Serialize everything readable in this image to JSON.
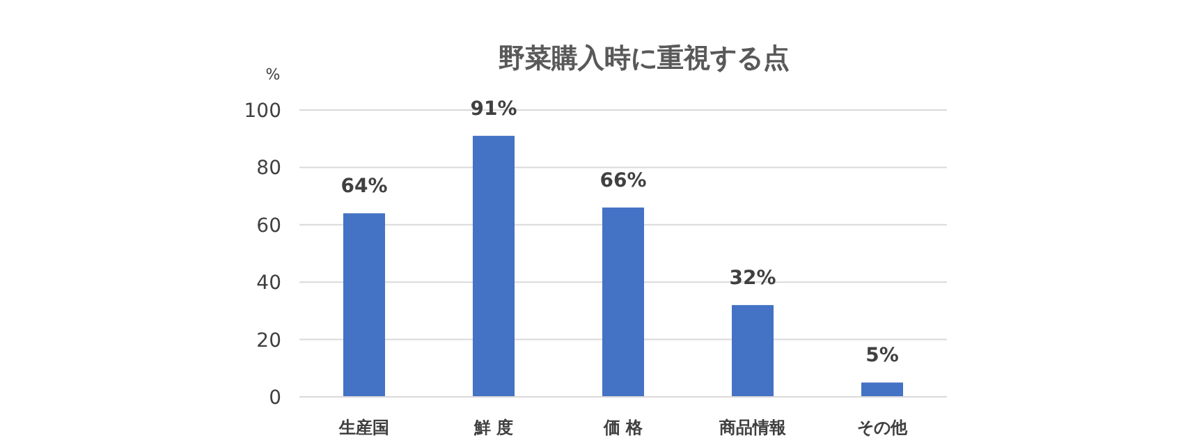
{
  "chart_data": {
    "type": "bar",
    "title": "野菜購入時に重視する点",
    "ylabel": "%",
    "categories": [
      "生産国",
      "鮮 度",
      "価 格",
      "商品情報",
      "その他"
    ],
    "values": [
      64,
      91,
      66,
      32,
      5
    ],
    "value_labels": [
      "64%",
      "91%",
      "66%",
      "32%",
      "5%"
    ],
    "color": "#4472c4",
    "ylim": [
      0,
      100
    ],
    "yticks": [
      0,
      20,
      40,
      60,
      80,
      100
    ],
    "grid": "y"
  }
}
